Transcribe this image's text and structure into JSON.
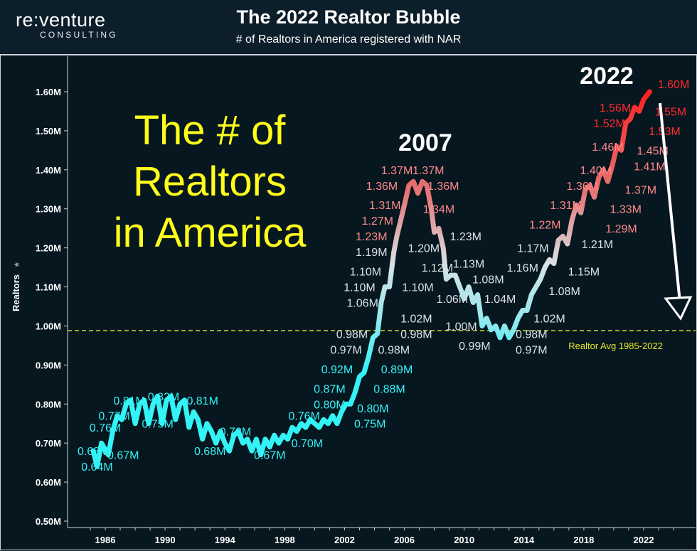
{
  "header": {
    "logo_main": "re:venture",
    "logo_sub": "CONSULTING",
    "title": "The 2022 Realtor Bubble",
    "subtitle": "# of Realtors in America registered with NAR"
  },
  "overlay_text": {
    "big_line1": "The # of",
    "big_line2": "Realtors",
    "big_line3": "in America",
    "year_2007": "2007",
    "year_2022": "2022",
    "avg_label": "Realtor Avg 1985-2022"
  },
  "colors": {
    "background": "#071720",
    "big_text": "#ffff1a",
    "avg_line": "#d9d92a",
    "low": "#33f3f6",
    "mid": "#d8e2e4",
    "high": "#ff1a1a"
  },
  "chart_data": {
    "type": "line",
    "title": "The 2022 Realtor Bubble",
    "subtitle": "# of Realtors in America registered with NAR",
    "ylabel": "Realtors",
    "xlabel": "",
    "xlim": [
      1985,
      2025
    ],
    "ylim": [
      0.5,
      1.65
    ],
    "x_ticks": [
      "1986",
      "1990",
      "1994",
      "1998",
      "2002",
      "2006",
      "2010",
      "2014",
      "2018",
      "2022"
    ],
    "y_ticks": [
      "0.50M",
      "0.60M",
      "0.70M",
      "0.80M",
      "0.90M",
      "1.00M",
      "1.10M",
      "1.20M",
      "1.30M",
      "1.40M",
      "1.50M",
      "1.60M"
    ],
    "average": 0.988,
    "grid": false,
    "series": [
      {
        "points": [
          [
            1985.2,
            0.68
          ],
          [
            1985.45,
            0.64
          ],
          [
            1985.75,
            0.7
          ],
          [
            1986.2,
            0.67
          ],
          [
            1986.5,
            0.73
          ],
          [
            1986.8,
            0.77
          ],
          [
            1987.1,
            0.76
          ],
          [
            1987.4,
            0.8
          ],
          [
            1987.7,
            0.81
          ],
          [
            1988.0,
            0.75
          ],
          [
            1988.3,
            0.8
          ],
          [
            1988.6,
            0.81
          ],
          [
            1988.9,
            0.75
          ],
          [
            1989.2,
            0.8
          ],
          [
            1989.5,
            0.82
          ],
          [
            1989.8,
            0.75
          ],
          [
            1990.1,
            0.81
          ],
          [
            1990.4,
            0.82
          ],
          [
            1990.7,
            0.76
          ],
          [
            1991.0,
            0.8
          ],
          [
            1991.3,
            0.81
          ],
          [
            1991.6,
            0.74
          ],
          [
            1991.9,
            0.78
          ],
          [
            1992.2,
            0.76
          ],
          [
            1992.5,
            0.71
          ],
          [
            1992.8,
            0.75
          ],
          [
            1993.1,
            0.73
          ],
          [
            1993.4,
            0.7
          ],
          [
            1993.7,
            0.73
          ],
          [
            1994.0,
            0.7
          ],
          [
            1994.3,
            0.68
          ],
          [
            1994.6,
            0.72
          ],
          [
            1994.9,
            0.73
          ],
          [
            1995.2,
            0.7
          ],
          [
            1995.5,
            0.71
          ],
          [
            1995.8,
            0.68
          ],
          [
            1996.1,
            0.71
          ],
          [
            1996.4,
            0.67
          ],
          [
            1996.7,
            0.71
          ],
          [
            1997.0,
            0.69
          ],
          [
            1997.3,
            0.72
          ],
          [
            1997.6,
            0.7
          ],
          [
            1997.9,
            0.72
          ],
          [
            1998.2,
            0.71
          ],
          [
            1998.5,
            0.74
          ],
          [
            1998.8,
            0.73
          ],
          [
            1999.1,
            0.75
          ],
          [
            1999.4,
            0.74
          ],
          [
            1999.7,
            0.76
          ],
          [
            2000.0,
            0.75
          ],
          [
            2000.3,
            0.74
          ],
          [
            2000.6,
            0.76
          ],
          [
            2000.9,
            0.75
          ],
          [
            2001.2,
            0.77
          ],
          [
            2001.5,
            0.75
          ],
          [
            2001.8,
            0.78
          ],
          [
            2002.1,
            0.8
          ],
          [
            2002.4,
            0.8
          ],
          [
            2002.7,
            0.83
          ],
          [
            2003.0,
            0.87
          ],
          [
            2003.3,
            0.88
          ],
          [
            2003.6,
            0.92
          ],
          [
            2003.9,
            0.97
          ],
          [
            2004.2,
            0.98
          ],
          [
            2004.45,
            1.06
          ],
          [
            2004.7,
            1.1
          ],
          [
            2005.0,
            1.1
          ],
          [
            2005.3,
            1.19
          ],
          [
            2005.5,
            1.23
          ],
          [
            2005.75,
            1.27
          ],
          [
            2006.0,
            1.31
          ],
          [
            2006.3,
            1.36
          ],
          [
            2006.6,
            1.37
          ],
          [
            2006.9,
            1.34
          ],
          [
            2007.2,
            1.37
          ],
          [
            2007.5,
            1.36
          ],
          [
            2007.8,
            1.3
          ],
          [
            2008.0,
            1.24
          ],
          [
            2008.3,
            1.25
          ],
          [
            2008.6,
            1.2
          ],
          [
            2008.8,
            1.12
          ],
          [
            2009.1,
            1.13
          ],
          [
            2009.4,
            1.13
          ],
          [
            2009.7,
            1.1
          ],
          [
            2010.0,
            1.07
          ],
          [
            2010.3,
            1.1
          ],
          [
            2010.6,
            1.06
          ],
          [
            2010.9,
            1.08
          ],
          [
            2011.2,
            1.0
          ],
          [
            2011.5,
            1.02
          ],
          [
            2011.8,
            0.99
          ],
          [
            2012.1,
            1.0
          ],
          [
            2012.4,
            0.97
          ],
          [
            2012.7,
            1.0
          ],
          [
            2013.0,
            0.97
          ],
          [
            2013.3,
            0.99
          ],
          [
            2013.6,
            1.02
          ],
          [
            2013.9,
            1.04
          ],
          [
            2014.2,
            1.04
          ],
          [
            2014.5,
            1.08
          ],
          [
            2014.8,
            1.1
          ],
          [
            2015.1,
            1.12
          ],
          [
            2015.4,
            1.15
          ],
          [
            2015.7,
            1.17
          ],
          [
            2016.0,
            1.16
          ],
          [
            2016.3,
            1.22
          ],
          [
            2016.6,
            1.23
          ],
          [
            2016.9,
            1.21
          ],
          [
            2017.2,
            1.27
          ],
          [
            2017.5,
            1.31
          ],
          [
            2017.8,
            1.29
          ],
          [
            2018.1,
            1.35
          ],
          [
            2018.4,
            1.36
          ],
          [
            2018.7,
            1.33
          ],
          [
            2019.0,
            1.38
          ],
          [
            2019.3,
            1.4
          ],
          [
            2019.6,
            1.37
          ],
          [
            2019.9,
            1.41
          ],
          [
            2020.2,
            1.46
          ],
          [
            2020.5,
            1.45
          ],
          [
            2020.8,
            1.52
          ],
          [
            2021.1,
            1.53
          ],
          [
            2021.4,
            1.56
          ],
          [
            2021.7,
            1.55
          ],
          [
            2022.0,
            1.58
          ],
          [
            2022.4,
            1.6
          ]
        ]
      }
    ],
    "data_labels": [
      {
        "text": "0.68M",
        "x": 1985.2,
        "y": 0.68,
        "c": "low"
      },
      {
        "text": "0.64M",
        "x": 1985.45,
        "y": 0.64,
        "c": "low"
      },
      {
        "text": "0.76M",
        "x": 1986.0,
        "y": 0.74,
        "c": "low"
      },
      {
        "text": "0.77M",
        "x": 1986.6,
        "y": 0.77,
        "c": "low"
      },
      {
        "text": "0.81M",
        "x": 1987.6,
        "y": 0.81,
        "c": "low"
      },
      {
        "text": "0.67M",
        "x": 1987.2,
        "y": 0.67,
        "c": "low"
      },
      {
        "text": "0.82M",
        "x": 1989.9,
        "y": 0.82,
        "c": "low"
      },
      {
        "text": "0.75M",
        "x": 1989.5,
        "y": 0.75,
        "c": "low"
      },
      {
        "text": "0.81M",
        "x": 1992.5,
        "y": 0.81,
        "c": "low"
      },
      {
        "text": "0.73M",
        "x": 1994.7,
        "y": 0.73,
        "c": "low"
      },
      {
        "text": "0.68M",
        "x": 1993.0,
        "y": 0.68,
        "c": "low"
      },
      {
        "text": "0.67M",
        "x": 1997.0,
        "y": 0.67,
        "c": "low"
      },
      {
        "text": "0.70M",
        "x": 1999.5,
        "y": 0.7,
        "c": "low"
      },
      {
        "text": "0.76M",
        "x": 1999.3,
        "y": 0.77,
        "c": "low"
      },
      {
        "text": "0.80M",
        "x": 2001.0,
        "y": 0.8,
        "c": "low"
      },
      {
        "text": "0.75M",
        "x": 2003.7,
        "y": 0.75,
        "c": "low"
      },
      {
        "text": "0.80M",
        "x": 2003.9,
        "y": 0.79,
        "c": "low"
      },
      {
        "text": "0.87M",
        "x": 2001.0,
        "y": 0.84,
        "c": "low"
      },
      {
        "text": "0.88M",
        "x": 2005.0,
        "y": 0.84,
        "c": "low"
      },
      {
        "text": "0.92M",
        "x": 2001.5,
        "y": 0.89,
        "c": "low"
      },
      {
        "text": "0.89M",
        "x": 2005.5,
        "y": 0.89,
        "c": "low"
      },
      {
        "text": "0.97M",
        "x": 2002.1,
        "y": 0.94,
        "c": "mid"
      },
      {
        "text": "0.98M",
        "x": 2005.3,
        "y": 0.94,
        "c": "mid"
      },
      {
        "text": "0.98M",
        "x": 2002.5,
        "y": 0.98,
        "c": "mid"
      },
      {
        "text": "0.98M",
        "x": 2006.8,
        "y": 0.98,
        "c": "mid"
      },
      {
        "text": "1.02M",
        "x": 2006.8,
        "y": 1.02,
        "c": "mid"
      },
      {
        "text": "1.06M",
        "x": 2003.2,
        "y": 1.06,
        "c": "mid"
      },
      {
        "text": "1.10M",
        "x": 2003.0,
        "y": 1.1,
        "c": "mid"
      },
      {
        "text": "1.10M",
        "x": 2006.9,
        "y": 1.1,
        "c": "mid"
      },
      {
        "text": "1.10M",
        "x": 2003.4,
        "y": 1.14,
        "c": "mid"
      },
      {
        "text": "1.12M",
        "x": 2008.2,
        "y": 1.15,
        "c": "mid"
      },
      {
        "text": "1.19M",
        "x": 2003.8,
        "y": 1.19,
        "c": "mid"
      },
      {
        "text": "1.20M",
        "x": 2007.3,
        "y": 1.2,
        "c": "mid"
      },
      {
        "text": "1.23M",
        "x": 2003.8,
        "y": 1.23,
        "c": "high2"
      },
      {
        "text": "1.27M",
        "x": 2004.2,
        "y": 1.27,
        "c": "high2"
      },
      {
        "text": "1.31M",
        "x": 2004.7,
        "y": 1.31,
        "c": "high2"
      },
      {
        "text": "1.36M",
        "x": 2004.5,
        "y": 1.36,
        "c": "high2"
      },
      {
        "text": "1.37M",
        "x": 2005.5,
        "y": 1.4,
        "c": "high2"
      },
      {
        "text": "1.37M",
        "x": 2007.6,
        "y": 1.4,
        "c": "high2"
      },
      {
        "text": "1.36M",
        "x": 2008.6,
        "y": 1.36,
        "c": "high2"
      },
      {
        "text": "1.34M",
        "x": 2008.3,
        "y": 1.3,
        "c": "high2"
      },
      {
        "text": "1.23M",
        "x": 2010.1,
        "y": 1.23,
        "c": "mid"
      },
      {
        "text": "1.13M",
        "x": 2010.3,
        "y": 1.16,
        "c": "mid"
      },
      {
        "text": "1.08M",
        "x": 2011.6,
        "y": 1.12,
        "c": "mid"
      },
      {
        "text": "1.06M",
        "x": 2009.2,
        "y": 1.07,
        "c": "mid"
      },
      {
        "text": "1.04M",
        "x": 2012.4,
        "y": 1.07,
        "c": "mid"
      },
      {
        "text": "1.00M",
        "x": 2009.8,
        "y": 1.0,
        "c": "mid"
      },
      {
        "text": "0.99M",
        "x": 2010.7,
        "y": 0.95,
        "c": "mid"
      },
      {
        "text": "0.98M",
        "x": 2014.5,
        "y": 0.98,
        "c": "mid"
      },
      {
        "text": "0.97M",
        "x": 2014.5,
        "y": 0.94,
        "c": "mid"
      },
      {
        "text": "1.02M",
        "x": 2015.7,
        "y": 1.02,
        "c": "mid"
      },
      {
        "text": "1.08M",
        "x": 2016.7,
        "y": 1.09,
        "c": "mid"
      },
      {
        "text": "1.16M",
        "x": 2013.9,
        "y": 1.15,
        "c": "mid"
      },
      {
        "text": "1.17M",
        "x": 2014.6,
        "y": 1.2,
        "c": "mid"
      },
      {
        "text": "1.15M",
        "x": 2018.0,
        "y": 1.14,
        "c": "mid"
      },
      {
        "text": "1.21M",
        "x": 2018.9,
        "y": 1.21,
        "c": "mid"
      },
      {
        "text": "1.22M",
        "x": 2015.4,
        "y": 1.26,
        "c": "high2"
      },
      {
        "text": "1.31M",
        "x": 2016.8,
        "y": 1.31,
        "c": "high2"
      },
      {
        "text": "1.29M",
        "x": 2020.5,
        "y": 1.25,
        "c": "high2"
      },
      {
        "text": "1.33M",
        "x": 2020.8,
        "y": 1.3,
        "c": "high2"
      },
      {
        "text": "1.36M",
        "x": 2017.9,
        "y": 1.36,
        "c": "high2"
      },
      {
        "text": "1.37M",
        "x": 2021.8,
        "y": 1.35,
        "c": "high2"
      },
      {
        "text": "1.40M",
        "x": 2018.8,
        "y": 1.4,
        "c": "high2"
      },
      {
        "text": "1.41M",
        "x": 2022.4,
        "y": 1.41,
        "c": "high2"
      },
      {
        "text": "1.45M",
        "x": 2022.6,
        "y": 1.45,
        "c": "high2"
      },
      {
        "text": "1.46M",
        "x": 2019.6,
        "y": 1.46,
        "c": "high2"
      },
      {
        "text": "1.52M",
        "x": 2019.7,
        "y": 1.52,
        "c": "high"
      },
      {
        "text": "1.53M",
        "x": 2023.4,
        "y": 1.5,
        "c": "high"
      },
      {
        "text": "1.56M",
        "x": 2020.1,
        "y": 1.56,
        "c": "high"
      },
      {
        "text": "1.55M",
        "x": 2023.8,
        "y": 1.55,
        "c": "high"
      },
      {
        "text": "1.60M",
        "x": 2024.0,
        "y": 1.62,
        "c": "high"
      }
    ]
  }
}
